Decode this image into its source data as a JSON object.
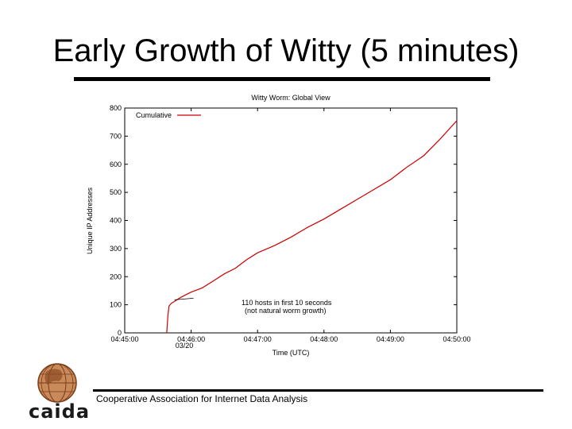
{
  "slide": {
    "title": "Early Growth of Witty (5 minutes)",
    "footer": "Cooperative Association for Internet Data Analysis",
    "logo_text": "caida"
  },
  "colors": {
    "series": "#cc0000",
    "axis": "#000000",
    "logo_brown": "#a0522d"
  },
  "chart_data": {
    "type": "line",
    "title": "Witty Worm: Global View",
    "xlabel": "Time (UTC)",
    "ylabel": "Unique IP Addresses",
    "x_ticks": [
      "04:45:00",
      "04:46:00",
      "04:47:00",
      "04:48:00",
      "04:49:00",
      "04:50:00"
    ],
    "x_date_label": "03/20",
    "ylim": [
      0,
      800
    ],
    "y_ticks": [
      0,
      100,
      200,
      300,
      400,
      500,
      600,
      700,
      800
    ],
    "y_tick_labels": [
      "0",
      "100",
      "200",
      "300",
      "400",
      "500",
      "600",
      "700",
      "800"
    ],
    "legend": {
      "label": "Cumulative",
      "position": "top-left"
    },
    "annotation": {
      "line1": "110 hosts in first 10 seconds",
      "line2": "(not natural worm growth)"
    },
    "series": [
      {
        "name": "Cumulative",
        "x_seconds": [
          38,
          39,
          40,
          42,
          45,
          50,
          55,
          60,
          70,
          80,
          90,
          100,
          110,
          120,
          135,
          150,
          165,
          180,
          195,
          210,
          225,
          240,
          255,
          270,
          285,
          300
        ],
        "values": [
          0,
          60,
          95,
          105,
          112,
          125,
          135,
          145,
          160,
          185,
          210,
          230,
          260,
          285,
          310,
          340,
          375,
          405,
          440,
          475,
          510,
          545,
          590,
          630,
          690,
          755
        ]
      }
    ]
  }
}
